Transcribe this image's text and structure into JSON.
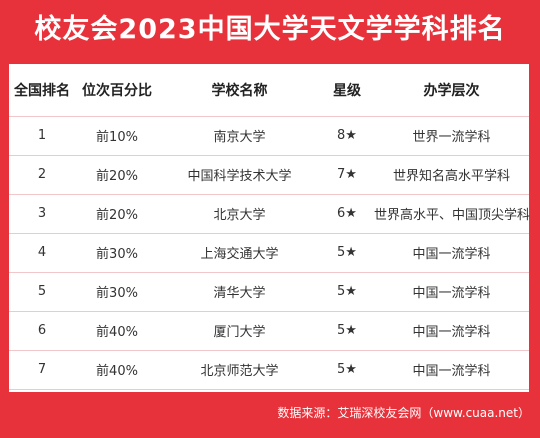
{
  "title": "校友会2023中国大学天文学学科排名",
  "table": {
    "headers": [
      "全国排名",
      "位次百分比",
      "学校名称",
      "星级",
      "办学层次"
    ],
    "rows": [
      {
        "rank": "1",
        "pct": "前10%",
        "school": "南京大学",
        "star": "8★",
        "level": "世界一流学科"
      },
      {
        "rank": "2",
        "pct": "前20%",
        "school": "中国科学技术大学",
        "star": "7★",
        "level": "世界知名高水平学科"
      },
      {
        "rank": "3",
        "pct": "前20%",
        "school": "北京大学",
        "star": "6★",
        "level": "世界高水平、中国顶尖学科"
      },
      {
        "rank": "4",
        "pct": "前30%",
        "school": "上海交通大学",
        "star": "5★",
        "level": "中国一流学科"
      },
      {
        "rank": "5",
        "pct": "前30%",
        "school": "清华大学",
        "star": "5★",
        "level": "中国一流学科"
      },
      {
        "rank": "6",
        "pct": "前40%",
        "school": "厦门大学",
        "star": "5★",
        "level": "中国一流学科"
      },
      {
        "rank": "7",
        "pct": "前40%",
        "school": "北京师范大学",
        "star": "5★",
        "level": "中国一流学科"
      }
    ]
  },
  "footer": "数据来源：艾瑞深校友会网（www.cuaa.net）",
  "colors": {
    "brand_red": "#e8323b",
    "row_border": "#f1c7c9"
  }
}
